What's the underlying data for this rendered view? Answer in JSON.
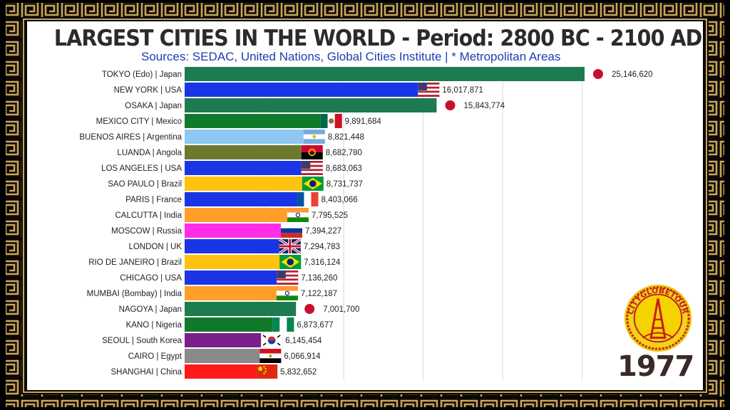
{
  "title": "LARGEST CITIES IN THE WORLD - Period: 2800 BC - 2100 AD",
  "subtitle": "Sources: SEDAC, United Nations, Global Cities Institute | * Metropolitan Areas",
  "year": "1977",
  "logo_text": "CITYGLOBETOUR",
  "chart_data": {
    "type": "bar",
    "orientation": "horizontal",
    "categories": [
      "TOKYO (Edo) | Japan",
      "NEW YORK | USA",
      "OSAKA | Japan",
      "MEXICO CITY | Mexico",
      "BUENOS AIRES | Argentina",
      "LUANDA | Angola",
      "LOS ANGELES | USA",
      "SAO PAULO | Brazil",
      "PARIS | France",
      "CALCUTTA | India",
      "MOSCOW | Russia",
      "LONDON | UK",
      "RIO DE JANEIRO | Brazil",
      "CHICAGO | USA",
      "MUMBAI (Bombay) | India",
      "NAGOYA | Japan",
      "KANO | Nigeria",
      "SEOUL | South Korea",
      "CAIRO | Egypt",
      "SHANGHAI | China"
    ],
    "values": [
      25146620,
      16017871,
      15843774,
      9891684,
      8821448,
      8682780,
      8683063,
      8731737,
      8403066,
      7795525,
      7394227,
      7294783,
      7316124,
      7136260,
      7122187,
      7001700,
      6873677,
      6145454,
      6066914,
      5832652
    ],
    "value_labels": [
      "25,146,620",
      "16,017,871",
      "15,843,774",
      "9,891,684",
      "8,821,448",
      "8,682,780",
      "8,683,063",
      "8,731,737",
      "8,403,066",
      "7,795,525",
      "7,394,227",
      "7,294,783",
      "7,316,124",
      "7,136,260",
      "7,122,187",
      "7,001,700",
      "6,873,677",
      "6,145,454",
      "6,066,914",
      "5,832,652"
    ],
    "colors": [
      "#1e7b4f",
      "#1a35e6",
      "#1e7b4f",
      "#117a2a",
      "#8ec7f2",
      "#6b7a2f",
      "#1a35e6",
      "#ffc20e",
      "#1a35e6",
      "#ff9f2a",
      "#ff2ee6",
      "#1a35e6",
      "#ffc20e",
      "#1a35e6",
      "#ff9f2a",
      "#1e7b4f",
      "#117a2a",
      "#7a1f8c",
      "#8a8a8a",
      "#ff1a1a"
    ],
    "flags": [
      "japan-flag",
      "usa-flag",
      "japan-flag",
      "mexico-flag",
      "argentina-flag",
      "angola-flag",
      "usa-flag",
      "brazil-flag",
      "france-flag",
      "india-flag",
      "russia-flag",
      "uk-flag",
      "brazil-flag",
      "usa-flag",
      "india-flag",
      "japan-flag",
      "nigeria-flag",
      "south-korea-flag",
      "egypt-flag",
      "china-flag"
    ],
    "xlim": [
      0,
      25146620
    ],
    "grid": true,
    "legend": "none"
  }
}
